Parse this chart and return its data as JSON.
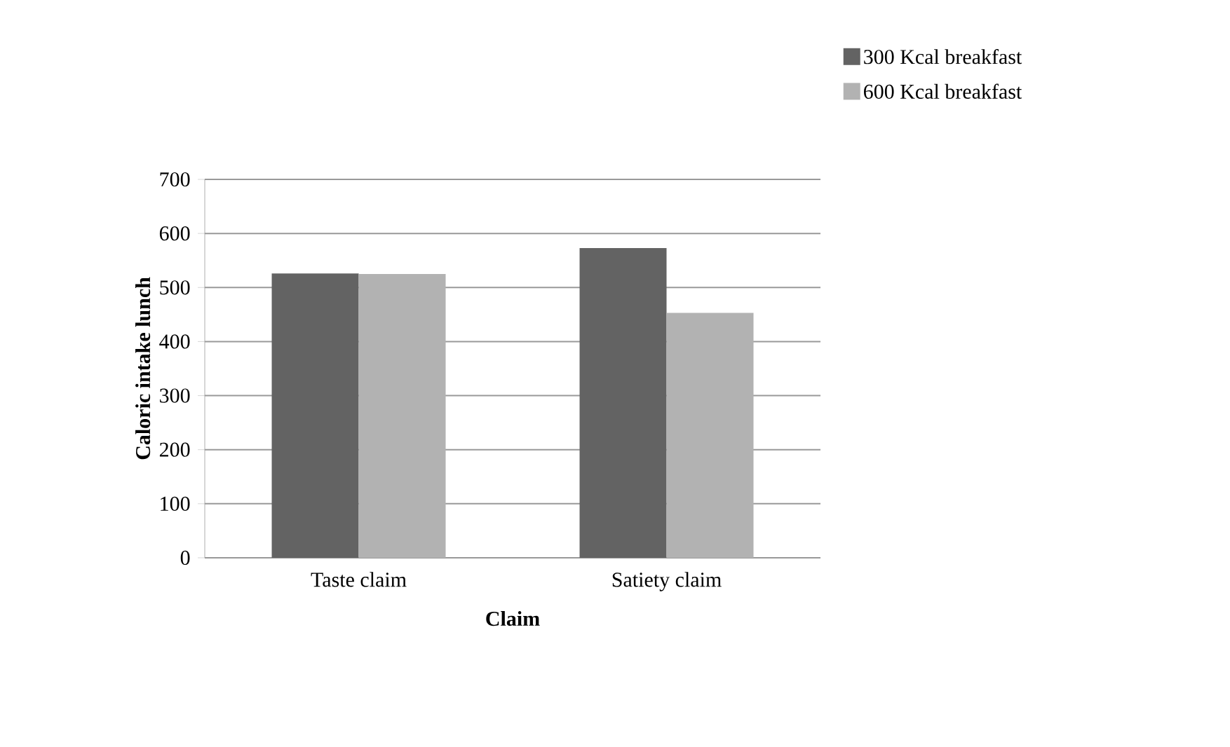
{
  "chart_data": {
    "type": "bar",
    "xlabel": "Claim",
    "ylabel": "Caloric intake lunch",
    "categories": [
      "Taste claim",
      "Satiety claim"
    ],
    "series": [
      {
        "name": "300 Kcal breakfast",
        "color": "#636363",
        "values": [
          526,
          573
        ]
      },
      {
        "name": "600 Kcal breakfast",
        "color": "#b2b2b2",
        "values": [
          525,
          453
        ]
      }
    ],
    "ylim": [
      0,
      700
    ],
    "yticks": [
      0,
      100,
      200,
      300,
      400,
      500,
      600,
      700
    ],
    "grid": "y",
    "legend": "top right"
  }
}
